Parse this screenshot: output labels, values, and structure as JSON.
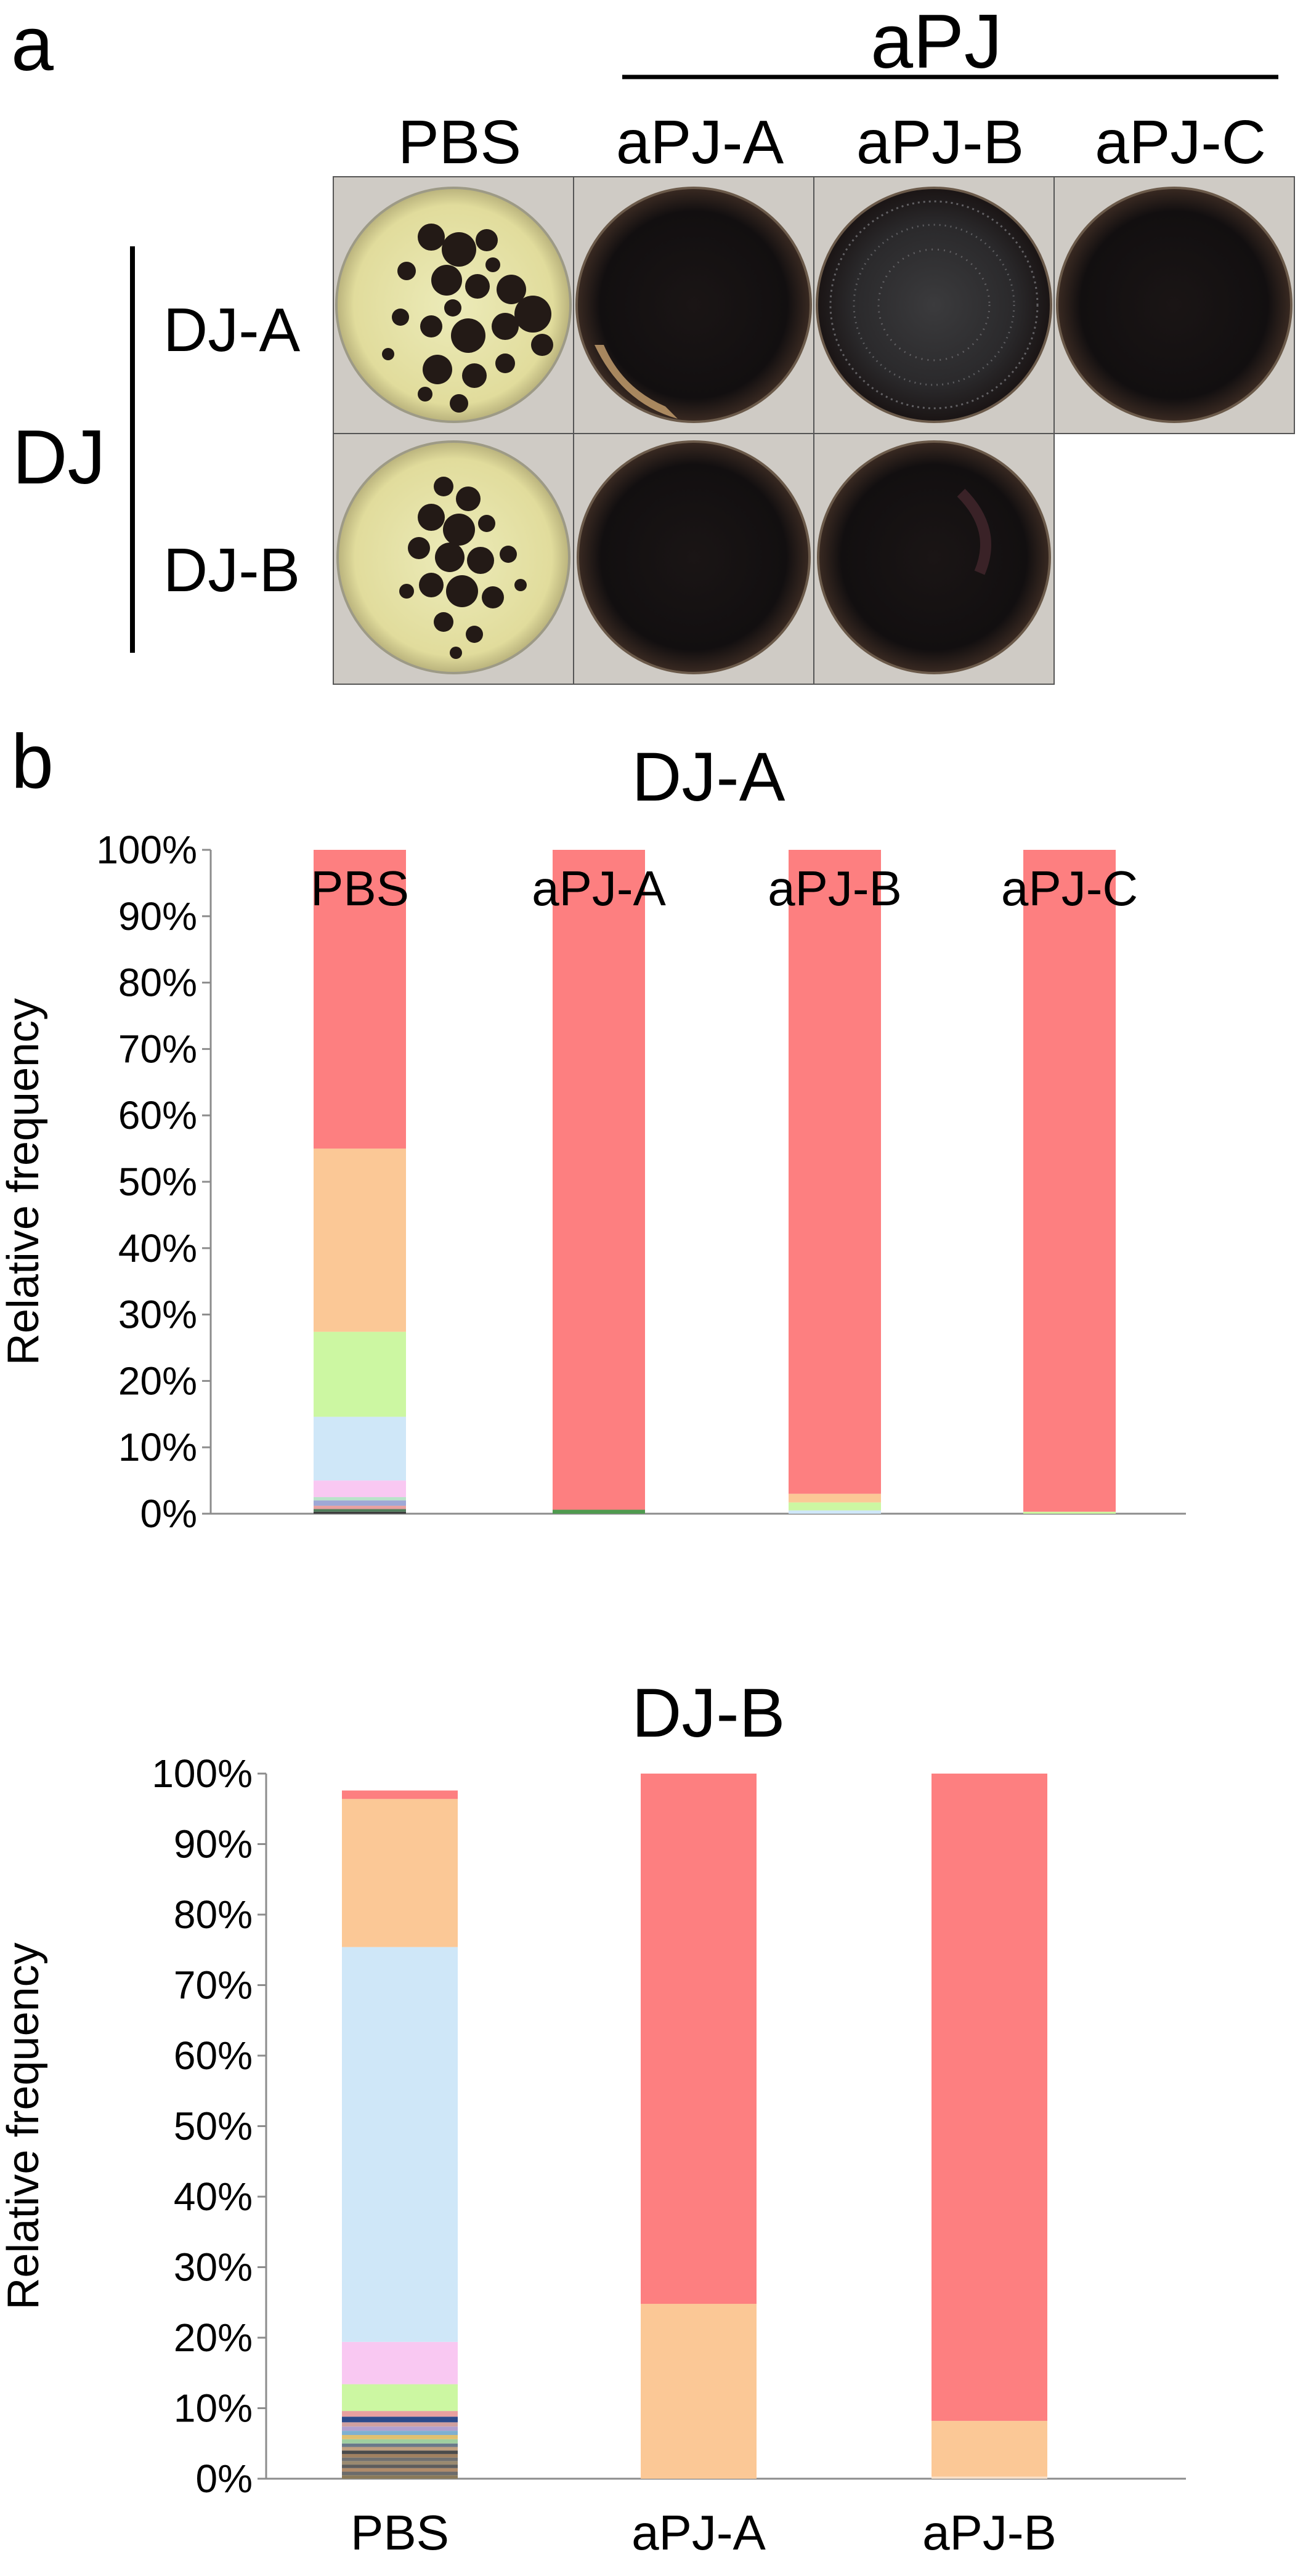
{
  "panel_a": {
    "label": "a",
    "group_label": "aPJ",
    "column_labels": [
      "PBS",
      "aPJ-A",
      "aPJ-B",
      "aPJ-C"
    ],
    "row_group_label": "DJ",
    "row_labels": [
      "DJ-A",
      "DJ-B"
    ],
    "plates": [
      [
        "yellow-with-dark-colonies",
        "dark-lawn",
        "dark-lawn-speckled",
        "dark-lawn"
      ],
      [
        "yellow-with-dark-colonies",
        "dark-lawn",
        "dark-lawn",
        null
      ]
    ]
  },
  "panel_b": {
    "label": "b"
  },
  "chart_data": [
    {
      "type": "bar",
      "stacked": true,
      "title": "DJ-A",
      "ylabel": "Relative frequency",
      "xlabel": "",
      "ylim": [
        0,
        100
      ],
      "yticks": [
        "0%",
        "10%",
        "20%",
        "30%",
        "40%",
        "50%",
        "60%",
        "70%",
        "80%",
        "90%",
        "100%"
      ],
      "categories": [
        "PBS",
        "aPJ-A",
        "aPJ-B",
        "aPJ-C"
      ],
      "legend": "none",
      "grid": false,
      "stacks": [
        [
          {
            "value": 0.3,
            "color": "#3d3d3d"
          },
          {
            "value": 0.4,
            "color": "#4f7d5a"
          },
          {
            "value": 0.5,
            "color": "#e8a0a0"
          },
          {
            "value": 0.8,
            "color": "#9fa8d6"
          },
          {
            "value": 0.5,
            "color": "#b9e3c9"
          },
          {
            "value": 2.5,
            "color": "#f9c8f2"
          },
          {
            "value": 9.6,
            "color": "#cfe7f8"
          },
          {
            "value": 12.8,
            "color": "#ccf7a2"
          },
          {
            "value": 27.6,
            "color": "#fbc896"
          },
          {
            "value": 45.0,
            "color": "#fd7f80"
          }
        ],
        [
          {
            "value": 0.6,
            "color": "#4f9a4f"
          },
          {
            "value": 99.4,
            "color": "#fd7f80"
          }
        ],
        [
          {
            "value": 0.5,
            "color": "#cfe7f8"
          },
          {
            "value": 1.2,
            "color": "#ccf7a2"
          },
          {
            "value": 1.3,
            "color": "#fbc896"
          },
          {
            "value": 97.0,
            "color": "#fd7f80"
          }
        ],
        [
          {
            "value": 0.3,
            "color": "#ccf7a2"
          },
          {
            "value": 99.7,
            "color": "#fd7f80"
          }
        ]
      ]
    },
    {
      "type": "bar",
      "stacked": true,
      "title": "DJ-B",
      "ylabel": "Relative frequency",
      "xlabel": "",
      "ylim": [
        0,
        100
      ],
      "yticks": [
        "0%",
        "10%",
        "20%",
        "30%",
        "40%",
        "50%",
        "60%",
        "70%",
        "80%",
        "90%",
        "100%"
      ],
      "categories": [
        "PBS",
        "aPJ-A",
        "aPJ-B"
      ],
      "legend": "none",
      "grid": false,
      "stacks": [
        [
          {
            "value": 0.5,
            "color": "#8a7a5a"
          },
          {
            "value": 0.5,
            "color": "#6b6b6b"
          },
          {
            "value": 0.5,
            "color": "#b08b6a"
          },
          {
            "value": 0.5,
            "color": "#5c5c5c"
          },
          {
            "value": 0.5,
            "color": "#9a8a70"
          },
          {
            "value": 0.5,
            "color": "#707070"
          },
          {
            "value": 0.5,
            "color": "#a08060"
          },
          {
            "value": 0.5,
            "color": "#4a4a4a"
          },
          {
            "value": 0.5,
            "color": "#c0a080"
          },
          {
            "value": 0.5,
            "color": "#6a7a8a"
          },
          {
            "value": 0.6,
            "color": "#9fcf9f"
          },
          {
            "value": 0.6,
            "color": "#e0c070"
          },
          {
            "value": 0.6,
            "color": "#7fb0d0"
          },
          {
            "value": 0.6,
            "color": "#b0a0d0"
          },
          {
            "value": 0.6,
            "color": "#d0a0a0"
          },
          {
            "value": 0.8,
            "color": "#2b4a8c"
          },
          {
            "value": 0.8,
            "color": "#e8a0a0"
          },
          {
            "value": 3.8,
            "color": "#ccf7a2"
          },
          {
            "value": 6.0,
            "color": "#f9c8f2"
          },
          {
            "value": 56.0,
            "color": "#cfe7f8"
          },
          {
            "value": 21.0,
            "color": "#fbc896"
          },
          {
            "value": 1.2,
            "color": "#fd7f80"
          }
        ],
        [
          {
            "value": 24.8,
            "color": "#fbc896"
          },
          {
            "value": 75.2,
            "color": "#fd7f80"
          }
        ],
        [
          {
            "value": 0.3,
            "color": "#f9e0c8"
          },
          {
            "value": 7.9,
            "color": "#fbc896"
          },
          {
            "value": 91.8,
            "color": "#fd7f80"
          }
        ]
      ]
    }
  ]
}
